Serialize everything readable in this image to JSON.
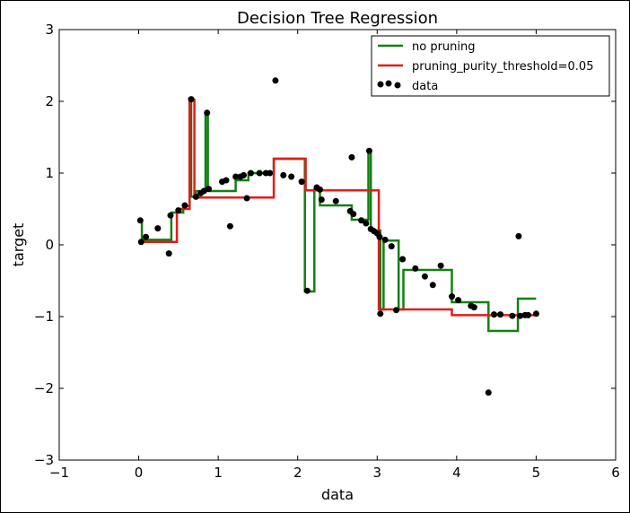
{
  "chart_data": {
    "type": "line",
    "title": "Decision Tree Regression",
    "xlabel": "data",
    "ylabel": "target",
    "xlim": [
      -1,
      6
    ],
    "ylim": [
      -3,
      3
    ],
    "xticks": [
      -1,
      0,
      1,
      2,
      3,
      4,
      5,
      6
    ],
    "yticks": [
      -3,
      -2,
      -1,
      0,
      1,
      2,
      3
    ],
    "xtick_labels": [
      "−1",
      "0",
      "1",
      "2",
      "3",
      "4",
      "5",
      "6"
    ],
    "ytick_labels": [
      "−3",
      "−2",
      "−1",
      "0",
      "1",
      "2",
      "3"
    ],
    "legend_position": "top-right",
    "series": [
      {
        "name": "no pruning",
        "type": "step",
        "color": "#138013",
        "points": [
          [
            0.02,
            0.33
          ],
          [
            0.04,
            0.33
          ],
          [
            0.04,
            0.07
          ],
          [
            0.41,
            0.07
          ],
          [
            0.41,
            0.45
          ],
          [
            0.56,
            0.45
          ],
          [
            0.56,
            0.54
          ],
          [
            0.64,
            0.54
          ],
          [
            0.64,
            2.02
          ],
          [
            0.66,
            2.02
          ],
          [
            0.66,
            0.67
          ],
          [
            0.72,
            0.67
          ],
          [
            0.72,
            0.75
          ],
          [
            0.84,
            0.75
          ],
          [
            0.84,
            1.83
          ],
          [
            0.87,
            1.83
          ],
          [
            0.87,
            0.75
          ],
          [
            1.22,
            0.75
          ],
          [
            1.22,
            0.9
          ],
          [
            1.38,
            0.9
          ],
          [
            1.38,
            1.0
          ],
          [
            1.7,
            1.0
          ],
          [
            1.7,
            1.2
          ],
          [
            2.09,
            1.2
          ],
          [
            2.09,
            -0.65
          ],
          [
            2.21,
            -0.65
          ],
          [
            2.21,
            0.77
          ],
          [
            2.28,
            0.77
          ],
          [
            2.28,
            0.55
          ],
          [
            2.68,
            0.55
          ],
          [
            2.68,
            0.35
          ],
          [
            2.89,
            0.35
          ],
          [
            2.89,
            1.31
          ],
          [
            2.92,
            1.31
          ],
          [
            2.92,
            0.2
          ],
          [
            3.04,
            0.2
          ],
          [
            3.04,
            -0.9
          ],
          [
            3.08,
            -0.9
          ],
          [
            3.08,
            0.06
          ],
          [
            3.27,
            0.06
          ],
          [
            3.27,
            -0.9
          ],
          [
            3.33,
            -0.9
          ],
          [
            3.33,
            -0.35
          ],
          [
            3.94,
            -0.35
          ],
          [
            3.94,
            -0.8
          ],
          [
            4.4,
            -0.8
          ],
          [
            4.4,
            -1.2
          ],
          [
            4.77,
            -1.2
          ],
          [
            4.77,
            -0.75
          ],
          [
            5.0,
            -0.75
          ]
        ]
      },
      {
        "name": "pruning_purity_threshold=0.05",
        "type": "step",
        "color": "#e41a1c",
        "points": [
          [
            0.02,
            0.04
          ],
          [
            0.48,
            0.04
          ],
          [
            0.48,
            0.5
          ],
          [
            0.64,
            0.5
          ],
          [
            0.64,
            2.02
          ],
          [
            0.7,
            2.02
          ],
          [
            0.7,
            0.66
          ],
          [
            1.7,
            0.66
          ],
          [
            1.7,
            1.2
          ],
          [
            2.1,
            1.2
          ],
          [
            2.1,
            0.76
          ],
          [
            3.02,
            0.76
          ],
          [
            3.02,
            -0.9
          ],
          [
            3.94,
            -0.9
          ],
          [
            3.94,
            -0.98
          ],
          [
            5.0,
            -0.98
          ]
        ]
      },
      {
        "name": "data",
        "type": "scatter",
        "color": "#000000",
        "points": [
          [
            0.02,
            0.34
          ],
          [
            0.03,
            0.04
          ],
          [
            0.09,
            0.11
          ],
          [
            0.24,
            0.23
          ],
          [
            0.38,
            -0.12
          ],
          [
            0.4,
            0.41
          ],
          [
            0.5,
            0.48
          ],
          [
            0.58,
            0.55
          ],
          [
            0.66,
            2.03
          ],
          [
            0.72,
            0.67
          ],
          [
            0.78,
            0.72
          ],
          [
            0.82,
            0.75
          ],
          [
            0.86,
            1.84
          ],
          [
            0.88,
            0.78
          ],
          [
            1.05,
            0.88
          ],
          [
            1.1,
            0.9
          ],
          [
            1.15,
            0.26
          ],
          [
            1.22,
            0.95
          ],
          [
            1.28,
            0.95
          ],
          [
            1.32,
            0.97
          ],
          [
            1.36,
            0.65
          ],
          [
            1.41,
            1.0
          ],
          [
            1.52,
            1.0
          ],
          [
            1.6,
            1.0
          ],
          [
            1.65,
            1.0
          ],
          [
            1.72,
            2.29
          ],
          [
            1.82,
            0.97
          ],
          [
            1.92,
            0.95
          ],
          [
            2.05,
            0.88
          ],
          [
            2.12,
            -0.64
          ],
          [
            2.24,
            0.8
          ],
          [
            2.28,
            0.77
          ],
          [
            2.3,
            0.63
          ],
          [
            2.48,
            0.61
          ],
          [
            2.66,
            0.47
          ],
          [
            2.68,
            1.22
          ],
          [
            2.7,
            0.43
          ],
          [
            2.8,
            0.34
          ],
          [
            2.86,
            0.3
          ],
          [
            2.9,
            1.31
          ],
          [
            2.92,
            0.22
          ],
          [
            2.96,
            0.19
          ],
          [
            3.0,
            0.16
          ],
          [
            3.03,
            0.11
          ],
          [
            3.04,
            -0.96
          ],
          [
            3.1,
            0.07
          ],
          [
            3.18,
            -0.02
          ],
          [
            3.24,
            -0.91
          ],
          [
            3.32,
            -0.2
          ],
          [
            3.48,
            -0.33
          ],
          [
            3.6,
            -0.44
          ],
          [
            3.7,
            -0.56
          ],
          [
            3.8,
            -0.29
          ],
          [
            3.94,
            -0.72
          ],
          [
            4.02,
            -0.77
          ],
          [
            4.18,
            -0.85
          ],
          [
            4.22,
            -0.87
          ],
          [
            4.4,
            -2.06
          ],
          [
            4.47,
            -0.97
          ],
          [
            4.55,
            -0.97
          ],
          [
            4.7,
            -0.99
          ],
          [
            4.78,
            0.12
          ],
          [
            4.8,
            -0.99
          ],
          [
            4.86,
            -0.98
          ],
          [
            4.9,
            -0.98
          ],
          [
            5.0,
            -0.96
          ]
        ]
      }
    ]
  }
}
